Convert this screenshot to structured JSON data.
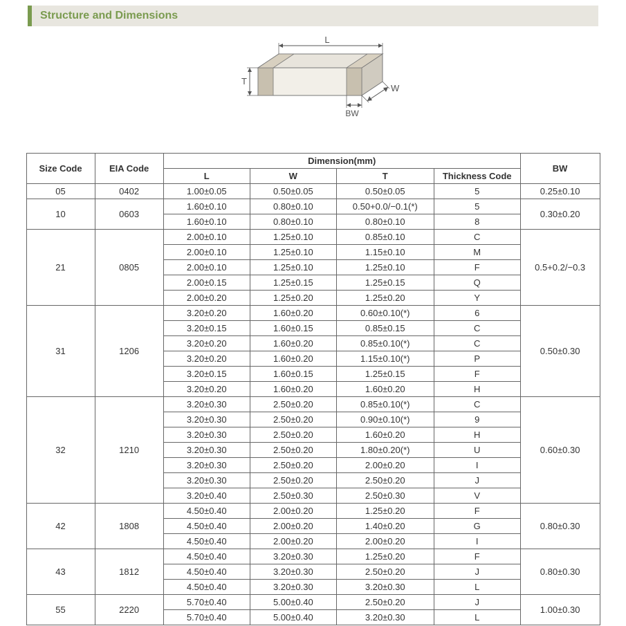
{
  "header": {
    "title": "Structure and Dimensions"
  },
  "diagram": {
    "labels": {
      "L": "L",
      "W": "W",
      "T": "T",
      "BW": "BW"
    },
    "colors": {
      "topFace": "#e8e4dc",
      "sideFace": "#d0cbc0",
      "frontFace": "#f2efe8",
      "edge": "#777",
      "endBand": "#b8b0a0",
      "arrow": "#555",
      "label": "#555"
    }
  },
  "table": {
    "headers": {
      "size": "Size Code",
      "eia": "EIA Code",
      "dim": "Dimension(mm)",
      "L": "L",
      "W": "W",
      "T": "T",
      "thick": "Thickness  Code",
      "BW": "BW"
    },
    "groups": [
      {
        "size": "05",
        "eia": "0402",
        "bw": "0.25±0.10",
        "rows": [
          {
            "L": "1.00±0.05",
            "W": "0.50±0.05",
            "T": "0.50±0.05",
            "tc": "5"
          }
        ]
      },
      {
        "size": "10",
        "eia": "0603",
        "bw": "0.30±0.20",
        "rows": [
          {
            "L": "1.60±0.10",
            "W": "0.80±0.10",
            "T": "0.50+0.0/−0.1(*)",
            "tc": "5"
          },
          {
            "L": "1.60±0.10",
            "W": "0.80±0.10",
            "T": "0.80±0.10",
            "tc": "8"
          }
        ]
      },
      {
        "size": "21",
        "eia": "0805",
        "bw": "0.5+0.2/−0.3",
        "rows": [
          {
            "L": "2.00±0.10",
            "W": "1.25±0.10",
            "T": "0.85±0.10",
            "tc": "C"
          },
          {
            "L": "2.00±0.10",
            "W": "1.25±0.10",
            "T": "1.15±0.10",
            "tc": "M"
          },
          {
            "L": "2.00±0.10",
            "W": "1.25±0.10",
            "T": "1.25±0.10",
            "tc": "F"
          },
          {
            "L": "2.00±0.15",
            "W": "1.25±0.15",
            "T": "1.25±0.15",
            "tc": "Q"
          },
          {
            "L": "2.00±0.20",
            "W": "1.25±0.20",
            "T": "1.25±0.20",
            "tc": "Y"
          }
        ]
      },
      {
        "size": "31",
        "eia": "1206",
        "bw": "0.50±0.30",
        "rows": [
          {
            "L": "3.20±0.20",
            "W": "1.60±0.20",
            "T": "0.60±0.10(*)",
            "tc": "6"
          },
          {
            "L": "3.20±0.15",
            "W": "1.60±0.15",
            "T": "0.85±0.15",
            "tc": "C"
          },
          {
            "L": "3.20±0.20",
            "W": "1.60±0.20",
            "T": "0.85±0.10(*)",
            "tc": "C"
          },
          {
            "L": "3.20±0.20",
            "W": "1.60±0.20",
            "T": "1.15±0.10(*)",
            "tc": "P"
          },
          {
            "L": "3.20±0.15",
            "W": "1.60±0.15",
            "T": "1.25±0.15",
            "tc": "F"
          },
          {
            "L": "3.20±0.20",
            "W": "1.60±0.20",
            "T": "1.60±0.20",
            "tc": "H"
          }
        ]
      },
      {
        "size": "32",
        "eia": "1210",
        "bw": "0.60±0.30",
        "rows": [
          {
            "L": "3.20±0.30",
            "W": "2.50±0.20",
            "T": "0.85±0.10(*)",
            "tc": "C"
          },
          {
            "L": "3.20±0.30",
            "W": "2.50±0.20",
            "T": "0.90±0.10(*)",
            "tc": "9"
          },
          {
            "L": "3.20±0.30",
            "W": "2.50±0.20",
            "T": "1.60±0.20",
            "tc": "H"
          },
          {
            "L": "3.20±0.30",
            "W": "2.50±0.20",
            "T": "1.80±0.20(*)",
            "tc": "U"
          },
          {
            "L": "3.20±0.30",
            "W": "2.50±0.20",
            "T": "2.00±0.20",
            "tc": "I"
          },
          {
            "L": "3.20±0.30",
            "W": "2.50±0.20",
            "T": "2.50±0.20",
            "tc": "J"
          },
          {
            "L": "3.20±0.40",
            "W": "2.50±0.30",
            "T": "2.50±0.30",
            "tc": "V"
          }
        ]
      },
      {
        "size": "42",
        "eia": "1808",
        "bw": "0.80±0.30",
        "rows": [
          {
            "L": "4.50±0.40",
            "W": "2.00±0.20",
            "T": "1.25±0.20",
            "tc": "F"
          },
          {
            "L": "4.50±0.40",
            "W": "2.00±0.20",
            "T": "1.40±0.20",
            "tc": "G"
          },
          {
            "L": "4.50±0.40",
            "W": "2.00±0.20",
            "T": "2.00±0.20",
            "tc": "I"
          }
        ]
      },
      {
        "size": "43",
        "eia": "1812",
        "bw": "0.80±0.30",
        "rows": [
          {
            "L": "4.50±0.40",
            "W": "3.20±0.30",
            "T": "1.25±0.20",
            "tc": "F"
          },
          {
            "L": "4.50±0.40",
            "W": "3.20±0.30",
            "T": "2.50±0.20",
            "tc": "J"
          },
          {
            "L": "4.50±0.40",
            "W": "3.20±0.30",
            "T": "3.20±0.30",
            "tc": "L"
          }
        ]
      },
      {
        "size": "55",
        "eia": "2220",
        "bw": "1.00±0.30",
        "rows": [
          {
            "L": "5.70±0.40",
            "W": "5.00±0.40",
            "T": "2.50±0.20",
            "tc": "J"
          },
          {
            "L": "5.70±0.40",
            "W": "5.00±0.40",
            "T": "3.20±0.30",
            "tc": "L"
          }
        ]
      }
    ]
  },
  "style": {
    "header_bg": "#e8e6df",
    "header_accent": "#7a9b4f",
    "border_color": "#666666",
    "text_color": "#333333",
    "font_size_table": 13,
    "font_size_header": 16
  }
}
